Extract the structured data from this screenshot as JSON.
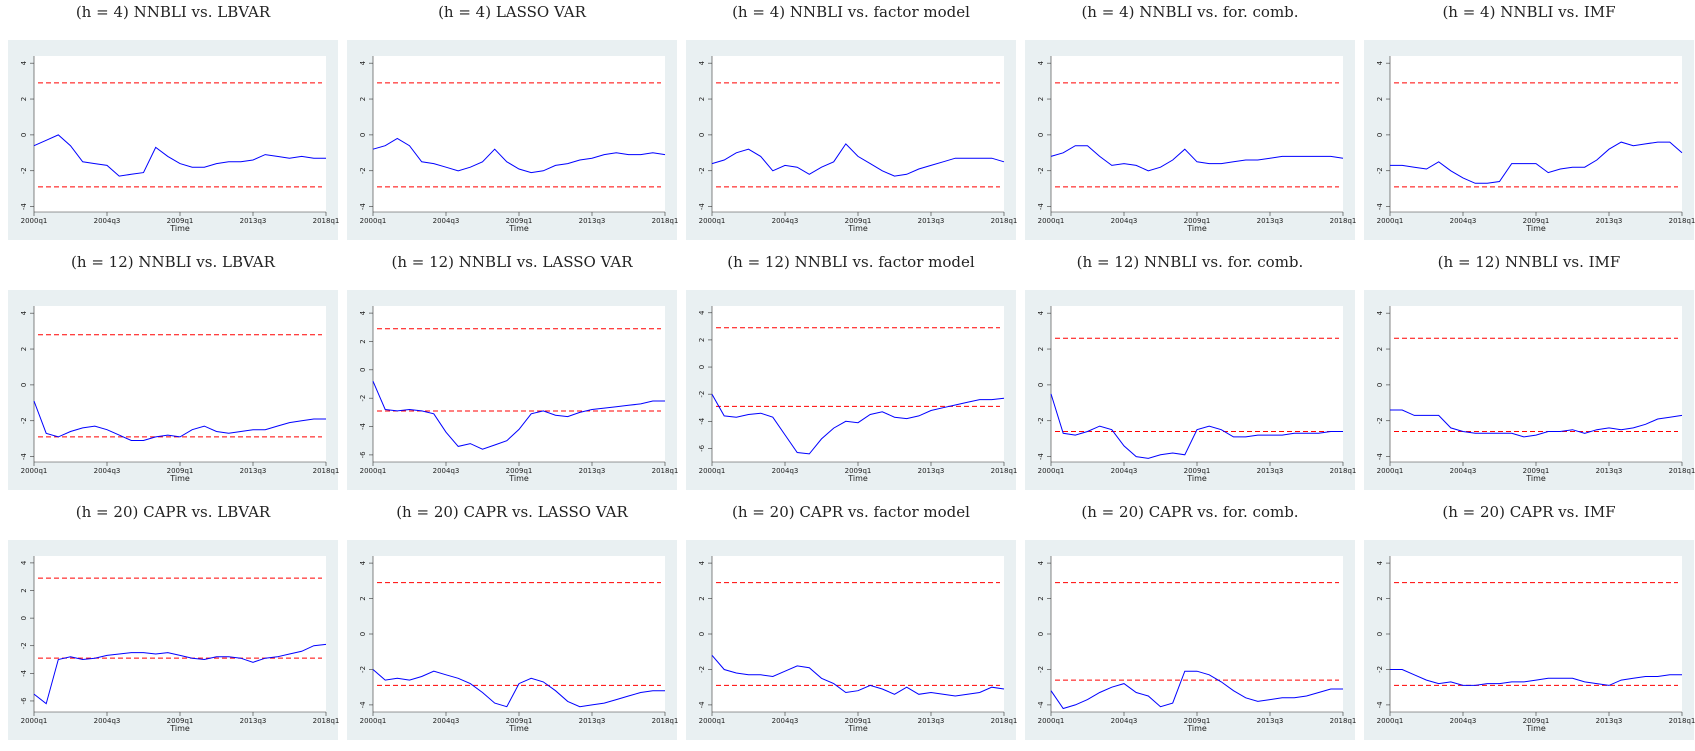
{
  "chart_data": [
    {
      "type": "line",
      "title": "(h = 4) NNBLI vs. LBVAR",
      "x_label": "Time",
      "categories": [
        "2000q1",
        null,
        null,
        null,
        null,
        null,
        "2004q3",
        null,
        null,
        null,
        null,
        null,
        "2009q1",
        null,
        null,
        null,
        null,
        null,
        "2013q3",
        null,
        null,
        null,
        null,
        null,
        "2018q1"
      ],
      "series": [
        {
          "color": "#0000ff",
          "values": [
            -0.6,
            -0.3,
            0.0,
            -0.6,
            -1.5,
            -1.6,
            -1.7,
            -2.3,
            -2.2,
            -2.1,
            -0.7,
            -1.2,
            -1.6,
            -1.8,
            -1.8,
            -1.6,
            -1.5,
            -1.5,
            -1.4,
            -1.1,
            -1.2,
            -1.3,
            -1.2,
            -1.3,
            -1.3
          ]
        }
      ],
      "hlines": [
        2.9,
        -2.9
      ],
      "hline_color": "#ff0000",
      "ylim": [
        -4.3,
        4.4
      ],
      "yticks": [
        -4,
        -2,
        0,
        2,
        4
      ]
    },
    {
      "type": "line",
      "title": "(h = 4) LASSO VAR",
      "x_label": "Time",
      "categories": [
        "2000q1",
        null,
        null,
        null,
        null,
        null,
        "2004q3",
        null,
        null,
        null,
        null,
        null,
        "2009q1",
        null,
        null,
        null,
        null,
        null,
        "2013q3",
        null,
        null,
        null,
        null,
        null,
        "2018q1"
      ],
      "series": [
        {
          "color": "#0000ff",
          "values": [
            -0.8,
            -0.6,
            -0.2,
            -0.6,
            -1.5,
            -1.6,
            -1.8,
            -2.0,
            -1.8,
            -1.5,
            -0.8,
            -1.5,
            -1.9,
            -2.1,
            -2.0,
            -1.7,
            -1.6,
            -1.4,
            -1.3,
            -1.1,
            -1.0,
            -1.1,
            -1.1,
            -1.0,
            -1.1
          ]
        }
      ],
      "hlines": [
        2.9,
        -2.9
      ],
      "hline_color": "#ff0000",
      "ylim": [
        -4.3,
        4.4
      ],
      "yticks": [
        -4,
        -2,
        0,
        2,
        4
      ]
    },
    {
      "type": "line",
      "title": "(h = 4) NNBLI vs. factor model",
      "x_label": "Time",
      "categories": [
        "2000q1",
        null,
        null,
        null,
        null,
        null,
        "2004q3",
        null,
        null,
        null,
        null,
        null,
        "2009q1",
        null,
        null,
        null,
        null,
        null,
        "2013q3",
        null,
        null,
        null,
        null,
        null,
        "2018q1"
      ],
      "series": [
        {
          "color": "#0000ff",
          "values": [
            -1.6,
            -1.4,
            -1.0,
            -0.8,
            -1.2,
            -2.0,
            -1.7,
            -1.8,
            -2.2,
            -1.8,
            -1.5,
            -0.5,
            -1.2,
            -1.6,
            -2.0,
            -2.3,
            -2.2,
            -1.9,
            -1.7,
            -1.5,
            -1.3,
            -1.3,
            -1.3,
            -1.3,
            -1.5
          ]
        }
      ],
      "hlines": [
        2.9,
        -2.9
      ],
      "hline_color": "#ff0000",
      "ylim": [
        -4.3,
        4.4
      ],
      "yticks": [
        -4,
        -2,
        0,
        2,
        4
      ]
    },
    {
      "type": "line",
      "title": "(h = 4) NNBLI vs. for. comb.",
      "x_label": "Time",
      "categories": [
        "2000q1",
        null,
        null,
        null,
        null,
        null,
        "2004q3",
        null,
        null,
        null,
        null,
        null,
        "2009q1",
        null,
        null,
        null,
        null,
        null,
        "2013q3",
        null,
        null,
        null,
        null,
        null,
        "2018q1"
      ],
      "series": [
        {
          "color": "#0000ff",
          "values": [
            -1.2,
            -1.0,
            -0.6,
            -0.6,
            -1.2,
            -1.7,
            -1.6,
            -1.7,
            -2.0,
            -1.8,
            -1.4,
            -0.8,
            -1.5,
            -1.6,
            -1.6,
            -1.5,
            -1.4,
            -1.4,
            -1.3,
            -1.2,
            -1.2,
            -1.2,
            -1.2,
            -1.2,
            -1.3
          ]
        }
      ],
      "hlines": [
        2.9,
        -2.9
      ],
      "hline_color": "#ff0000",
      "ylim": [
        -4.3,
        4.4
      ],
      "yticks": [
        -4,
        -2,
        0,
        2,
        4
      ]
    },
    {
      "type": "line",
      "title": "(h = 4) NNBLI vs. IMF",
      "x_label": "Time",
      "categories": [
        "2000q1",
        null,
        null,
        null,
        null,
        null,
        "2004q3",
        null,
        null,
        null,
        null,
        null,
        "2009q1",
        null,
        null,
        null,
        null,
        null,
        "2013q3",
        null,
        null,
        null,
        null,
        null,
        "2018q1"
      ],
      "series": [
        {
          "color": "#0000ff",
          "values": [
            -1.7,
            -1.7,
            -1.8,
            -1.9,
            -1.5,
            -2.0,
            -2.4,
            -2.7,
            -2.7,
            -2.6,
            -1.6,
            -1.6,
            -1.6,
            -2.1,
            -1.9,
            -1.8,
            -1.8,
            -1.4,
            -0.8,
            -0.4,
            -0.6,
            -0.5,
            -0.4,
            -0.4,
            -1.0
          ]
        }
      ],
      "hlines": [
        2.9,
        -2.9
      ],
      "hline_color": "#ff0000",
      "ylim": [
        -4.3,
        4.4
      ],
      "yticks": [
        -4,
        -2,
        0,
        2,
        4
      ]
    },
    {
      "type": "line",
      "title": "(h = 12) NNBLI vs. LBVAR",
      "x_label": "Time",
      "categories": [
        "2000q1",
        null,
        null,
        null,
        null,
        null,
        "2004q3",
        null,
        null,
        null,
        null,
        null,
        "2009q1",
        null,
        null,
        null,
        null,
        null,
        "2013q3",
        null,
        null,
        null,
        null,
        null,
        "2018q1"
      ],
      "series": [
        {
          "color": "#0000ff",
          "values": [
            -0.9,
            -2.7,
            -2.9,
            -2.6,
            -2.4,
            -2.3,
            -2.5,
            -2.8,
            -3.1,
            -3.1,
            -2.9,
            -2.8,
            -2.9,
            -2.5,
            -2.3,
            -2.6,
            -2.7,
            -2.6,
            -2.5,
            -2.5,
            -2.3,
            -2.1,
            -2.0,
            -1.9,
            -1.9
          ]
        }
      ],
      "hlines": [
        2.8,
        -2.9
      ],
      "hline_color": "#ff0000",
      "ylim": [
        -4.3,
        4.4
      ],
      "yticks": [
        -4,
        -2,
        0,
        2,
        4
      ]
    },
    {
      "type": "line",
      "title": "(h = 12) NNBLI vs. LASSO VAR",
      "x_label": "Time",
      "categories": [
        "2000q1",
        null,
        null,
        null,
        null,
        null,
        "2004q3",
        null,
        null,
        null,
        null,
        null,
        "2009q1",
        null,
        null,
        null,
        null,
        null,
        "2013q3",
        null,
        null,
        null,
        null,
        null,
        "2018q1"
      ],
      "series": [
        {
          "color": "#0000ff",
          "values": [
            -0.8,
            -2.8,
            -2.9,
            -2.8,
            -2.9,
            -3.1,
            -4.4,
            -5.4,
            -5.2,
            -5.6,
            -5.3,
            -5.0,
            -4.2,
            -3.1,
            -2.9,
            -3.2,
            -3.3,
            -3.0,
            -2.8,
            -2.7,
            -2.6,
            -2.5,
            -2.4,
            -2.2,
            -2.2
          ]
        }
      ],
      "hlines": [
        2.9,
        -2.9
      ],
      "hline_color": "#ff0000",
      "ylim": [
        -6.5,
        4.5
      ],
      "yticks": [
        -6,
        -4,
        -2,
        0,
        2,
        4
      ]
    },
    {
      "type": "line",
      "title": "(h = 12) NNBLI vs. factor model",
      "x_label": "Time",
      "categories": [
        "2000q1",
        null,
        null,
        null,
        null,
        null,
        "2004q3",
        null,
        null,
        null,
        null,
        null,
        "2009q1",
        null,
        null,
        null,
        null,
        null,
        "2013q3",
        null,
        null,
        null,
        null,
        null,
        "2018q1"
      ],
      "series": [
        {
          "color": "#0000ff",
          "values": [
            -2.0,
            -3.6,
            -3.7,
            -3.5,
            -3.4,
            -3.7,
            -5.0,
            -6.3,
            -6.4,
            -5.3,
            -4.5,
            -4.0,
            -4.1,
            -3.5,
            -3.3,
            -3.7,
            -3.8,
            -3.6,
            -3.2,
            -3.0,
            -2.8,
            -2.6,
            -2.4,
            -2.4,
            -2.3
          ]
        }
      ],
      "hlines": [
        2.9,
        -2.9
      ],
      "hline_color": "#ff0000",
      "ylim": [
        -7,
        4.5
      ],
      "yticks": [
        -6,
        -4,
        -2,
        0,
        2,
        4
      ]
    },
    {
      "type": "line",
      "title": "(h = 12) NNBLI vs. for. comb.",
      "x_label": "Time",
      "categories": [
        "2000q1",
        null,
        null,
        null,
        null,
        null,
        "2004q3",
        null,
        null,
        null,
        null,
        null,
        "2009q1",
        null,
        null,
        null,
        null,
        null,
        "2013q3",
        null,
        null,
        null,
        null,
        null,
        "2018q1"
      ],
      "series": [
        {
          "color": "#0000ff",
          "values": [
            -0.5,
            -2.7,
            -2.8,
            -2.6,
            -2.3,
            -2.5,
            -3.4,
            -4.0,
            -4.1,
            -3.9,
            -3.8,
            -3.9,
            -2.5,
            -2.3,
            -2.5,
            -2.9,
            -2.9,
            -2.8,
            -2.8,
            -2.8,
            -2.7,
            -2.7,
            -2.7,
            -2.6,
            -2.6
          ]
        }
      ],
      "hlines": [
        2.6,
        -2.6
      ],
      "hline_color": "#ff0000",
      "ylim": [
        -4.3,
        4.4
      ],
      "yticks": [
        -4,
        -2,
        0,
        2,
        4
      ]
    },
    {
      "type": "line",
      "title": "(h = 12) NNBLI vs. IMF",
      "x_label": "Time",
      "categories": [
        "2000q1",
        null,
        null,
        null,
        null,
        null,
        "2004q3",
        null,
        null,
        null,
        null,
        null,
        "2009q1",
        null,
        null,
        null,
        null,
        null,
        "2013q3",
        null,
        null,
        null,
        null,
        null,
        "2018q1"
      ],
      "series": [
        {
          "color": "#0000ff",
          "values": [
            -1.4,
            -1.4,
            -1.7,
            -1.7,
            -1.7,
            -2.4,
            -2.6,
            -2.7,
            -2.7,
            -2.7,
            -2.7,
            -2.9,
            -2.8,
            -2.6,
            -2.6,
            -2.5,
            -2.7,
            -2.5,
            -2.4,
            -2.5,
            -2.4,
            -2.2,
            -1.9,
            -1.8,
            -1.7
          ]
        }
      ],
      "hlines": [
        2.6,
        -2.6
      ],
      "hline_color": "#ff0000",
      "ylim": [
        -4.3,
        4.4
      ],
      "yticks": [
        -4,
        -2,
        0,
        2,
        4
      ]
    },
    {
      "type": "line",
      "title": "(h = 20) CAPR vs. LBVAR",
      "x_label": "Time",
      "categories": [
        "2000q1",
        null,
        null,
        null,
        null,
        null,
        "2004q3",
        null,
        null,
        null,
        null,
        null,
        "2009q1",
        null,
        null,
        null,
        null,
        null,
        "2013q3",
        null,
        null,
        null,
        null,
        null,
        "2018q1"
      ],
      "series": [
        {
          "color": "#0000ff",
          "values": [
            -5.5,
            -6.2,
            -3.0,
            -2.8,
            -3.0,
            -2.9,
            -2.7,
            -2.6,
            -2.5,
            -2.5,
            -2.6,
            -2.5,
            -2.7,
            -2.9,
            -3.0,
            -2.8,
            -2.8,
            -2.9,
            -3.2,
            -2.9,
            -2.8,
            -2.6,
            -2.4,
            -2.0,
            -1.9
          ]
        }
      ],
      "hlines": [
        2.9,
        -2.9
      ],
      "hline_color": "#ff0000",
      "ylim": [
        -6.8,
        4.5
      ],
      "yticks": [
        -6,
        -4,
        -2,
        0,
        2,
        4
      ]
    },
    {
      "type": "line",
      "title": "(h = 20) CAPR vs. LASSO VAR",
      "x_label": "Time",
      "categories": [
        "2000q1",
        null,
        null,
        null,
        null,
        null,
        "2004q3",
        null,
        null,
        null,
        null,
        null,
        "2009q1",
        null,
        null,
        null,
        null,
        null,
        "2013q3",
        null,
        null,
        null,
        null,
        null,
        "2018q1"
      ],
      "series": [
        {
          "color": "#0000ff",
          "values": [
            -2.0,
            -2.6,
            -2.5,
            -2.6,
            -2.4,
            -2.1,
            -2.3,
            -2.5,
            -2.8,
            -3.3,
            -3.9,
            -4.1,
            -2.8,
            -2.5,
            -2.7,
            -3.2,
            -3.8,
            -4.1,
            -4.0,
            -3.9,
            -3.7,
            -3.5,
            -3.3,
            -3.2,
            -3.2
          ]
        }
      ],
      "hlines": [
        2.9,
        -2.9
      ],
      "hline_color": "#ff0000",
      "ylim": [
        -4.4,
        4.4
      ],
      "yticks": [
        -4,
        -2,
        0,
        2,
        4
      ]
    },
    {
      "type": "line",
      "title": "(h = 20) CAPR vs. factor model",
      "x_label": "Time",
      "categories": [
        "2000q1",
        null,
        null,
        null,
        null,
        null,
        "2004q3",
        null,
        null,
        null,
        null,
        null,
        "2009q1",
        null,
        null,
        null,
        null,
        null,
        "2013q3",
        null,
        null,
        null,
        null,
        null,
        "2018q1"
      ],
      "series": [
        {
          "color": "#0000ff",
          "values": [
            -1.2,
            -2.0,
            -2.2,
            -2.3,
            -2.3,
            -2.4,
            -2.1,
            -1.8,
            -1.9,
            -2.5,
            -2.8,
            -3.3,
            -3.2,
            -2.9,
            -3.1,
            -3.4,
            -3.0,
            -3.4,
            -3.3,
            -3.4,
            -3.5,
            -3.4,
            -3.3,
            -3.0,
            -3.1
          ]
        }
      ],
      "hlines": [
        2.9,
        -2.9
      ],
      "hline_color": "#ff0000",
      "ylim": [
        -4.4,
        4.4
      ],
      "yticks": [
        -4,
        -2,
        0,
        2,
        4
      ]
    },
    {
      "type": "line",
      "title": "(h = 20) CAPR vs. for. comb.",
      "x_label": "Time",
      "categories": [
        "2000q1",
        null,
        null,
        null,
        null,
        null,
        "2004q3",
        null,
        null,
        null,
        null,
        null,
        "2009q1",
        null,
        null,
        null,
        null,
        null,
        "2013q3",
        null,
        null,
        null,
        null,
        null,
        "2018q1"
      ],
      "series": [
        {
          "color": "#0000ff",
          "values": [
            -3.2,
            -4.2,
            -4.0,
            -3.7,
            -3.3,
            -3.0,
            -2.8,
            -3.3,
            -3.5,
            -4.1,
            -3.9,
            -2.1,
            -2.1,
            -2.3,
            -2.7,
            -3.2,
            -3.6,
            -3.8,
            -3.7,
            -3.6,
            -3.6,
            -3.5,
            -3.3,
            -3.1,
            -3.1
          ]
        }
      ],
      "hlines": [
        2.9,
        -2.6
      ],
      "hline_color": "#ff0000",
      "ylim": [
        -4.4,
        4.4
      ],
      "yticks": [
        -4,
        -2,
        0,
        2,
        4
      ]
    },
    {
      "type": "line",
      "title": "(h = 20) CAPR vs. IMF",
      "x_label": "Time",
      "categories": [
        "2000q1",
        null,
        null,
        null,
        null,
        null,
        "2004q3",
        null,
        null,
        null,
        null,
        null,
        "2009q1",
        null,
        null,
        null,
        null,
        null,
        "2013q3",
        null,
        null,
        null,
        null,
        null,
        "2018q1"
      ],
      "series": [
        {
          "color": "#0000ff",
          "values": [
            -2.0,
            -2.0,
            -2.3,
            -2.6,
            -2.8,
            -2.7,
            -2.9,
            -2.9,
            -2.8,
            -2.8,
            -2.7,
            -2.7,
            -2.6,
            -2.5,
            -2.5,
            -2.5,
            -2.7,
            -2.8,
            -2.9,
            -2.6,
            -2.5,
            -2.4,
            -2.4,
            -2.3,
            -2.3
          ]
        }
      ],
      "hlines": [
        2.9,
        -2.9
      ],
      "hline_color": "#ff0000",
      "ylim": [
        -4.4,
        4.4
      ],
      "yticks": [
        -4,
        -2,
        0,
        2,
        4
      ]
    }
  ]
}
